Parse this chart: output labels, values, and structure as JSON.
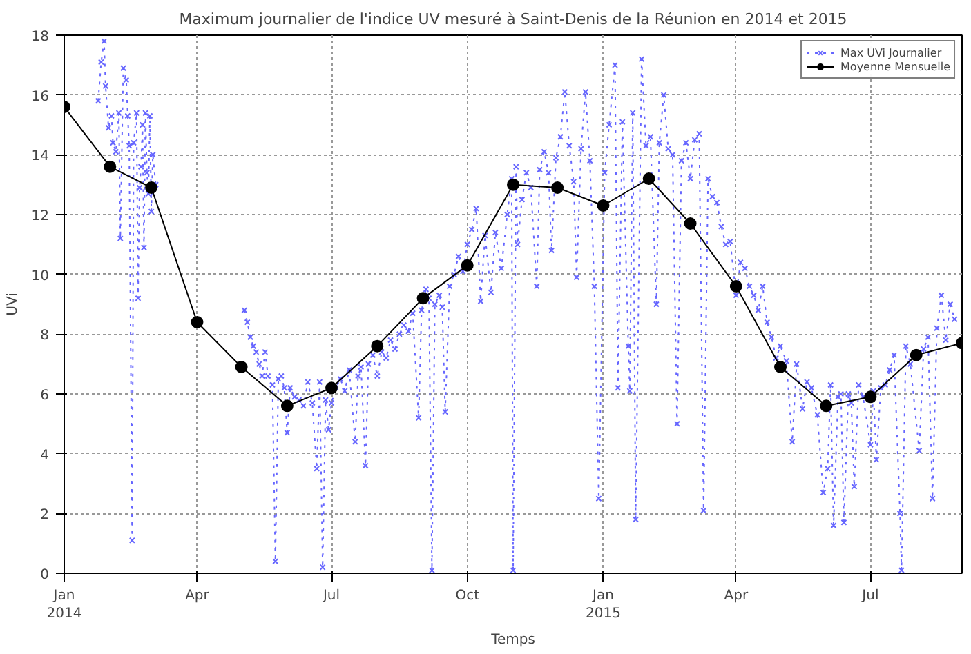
{
  "chart_data": {
    "type": "line",
    "title": "Maximum journalier de l'indice UV mesuré à Saint-Denis de la Réunion en 2014 et 2015",
    "xlabel": "Temps",
    "ylabel": "UVi",
    "xlim": [
      "2014-01-01",
      "2015-09-01"
    ],
    "xticks": [
      {
        "value": "2014-01-01",
        "label": "Jan\n2014"
      },
      {
        "value": "2014-04-01",
        "label": "Apr"
      },
      {
        "value": "2014-07-01",
        "label": "Jul"
      },
      {
        "value": "2014-10-01",
        "label": "Oct"
      },
      {
        "value": "2015-01-01",
        "label": "Jan\n2015"
      },
      {
        "value": "2015-04-01",
        "label": "Apr"
      },
      {
        "value": "2015-07-01",
        "label": "Jul"
      }
    ],
    "ylim": [
      0,
      18
    ],
    "yticks": [
      0,
      2,
      4,
      6,
      8,
      10,
      12,
      14,
      16,
      18
    ],
    "grid": true,
    "legend": "top right",
    "series": [
      {
        "name": "Max UVi Journalier",
        "color": "#6666ff",
        "marker": "cross",
        "line_style": "dotted",
        "x": [
          "2014-01-24",
          "2014-01-26",
          "2014-01-28",
          "2014-01-29",
          "2014-01-31",
          "2014-02-02",
          "2014-02-03",
          "2014-02-05",
          "2014-02-07",
          "2014-02-08",
          "2014-02-10",
          "2014-02-12",
          "2014-02-13",
          "2014-02-14",
          "2014-02-16",
          "2014-02-17",
          "2014-02-19",
          "2014-02-20",
          "2014-02-21",
          "2014-02-22",
          "2014-02-23",
          "2014-02-24",
          "2014-02-25",
          "2014-02-26",
          "2014-02-27",
          "2014-02-28",
          "2014-03-01",
          "2014-03-02",
          "2014-03-04",
          "2014-04-15",
          "2014-05-03",
          "2014-05-05",
          "2014-05-07",
          "2014-05-09",
          "2014-05-11",
          "2014-05-13",
          "2014-05-15",
          "2014-05-17",
          "2014-05-19",
          "2014-05-22",
          "2014-05-24",
          "2014-05-26",
          "2014-05-28",
          "2014-05-30",
          "2014-06-01",
          "2014-06-03",
          "2014-06-06",
          "2014-06-09",
          "2014-06-12",
          "2014-06-15",
          "2014-06-18",
          "2014-06-21",
          "2014-06-23",
          "2014-06-25",
          "2014-06-27",
          "2014-06-29",
          "2014-07-01",
          "2014-07-04",
          "2014-07-07",
          "2014-07-10",
          "2014-07-13",
          "2014-07-17",
          "2014-07-19",
          "2014-07-21",
          "2014-07-24",
          "2014-07-26",
          "2014-07-29",
          "2014-08-01",
          "2014-08-04",
          "2014-08-07",
          "2014-08-10",
          "2014-08-13",
          "2014-08-16",
          "2014-08-19",
          "2014-08-22",
          "2014-08-25",
          "2014-08-29",
          "2014-08-31",
          "2014-09-03",
          "2014-09-05",
          "2014-09-07",
          "2014-09-09",
          "2014-09-12",
          "2014-09-14",
          "2014-09-16",
          "2014-09-19",
          "2014-09-22",
          "2014-09-25",
          "2014-09-28",
          "2014-10-01",
          "2014-10-04",
          "2014-10-07",
          "2014-10-10",
          "2014-10-13",
          "2014-10-17",
          "2014-10-20",
          "2014-10-24",
          "2014-10-28",
          "2014-10-31",
          "2014-11-01",
          "2014-11-03",
          "2014-11-04",
          "2014-11-07",
          "2014-11-10",
          "2014-11-13",
          "2014-11-17",
          "2014-11-19",
          "2014-11-22",
          "2014-11-25",
          "2014-11-27",
          "2014-11-30",
          "2014-12-03",
          "2014-12-06",
          "2014-12-09",
          "2014-12-12",
          "2014-12-14",
          "2014-12-17",
          "2014-12-20",
          "2014-12-23",
          "2014-12-26",
          "2014-12-29",
          "2015-01-02",
          "2015-01-05",
          "2015-01-09",
          "2015-01-11",
          "2015-01-14",
          "2015-01-18",
          "2015-01-19",
          "2015-01-21",
          "2015-01-23",
          "2015-01-27",
          "2015-01-30",
          "2015-02-02",
          "2015-02-06",
          "2015-02-08",
          "2015-02-11",
          "2015-02-14",
          "2015-02-17",
          "2015-02-20",
          "2015-02-23",
          "2015-02-26",
          "2015-03-01",
          "2015-03-04",
          "2015-03-07",
          "2015-03-10",
          "2015-03-13",
          "2015-03-16",
          "2015-03-19",
          "2015-03-22",
          "2015-03-25",
          "2015-03-28",
          "2015-04-01",
          "2015-04-04",
          "2015-04-07",
          "2015-04-10",
          "2015-04-13",
          "2015-04-16",
          "2015-04-19",
          "2015-04-22",
          "2015-04-25",
          "2015-04-28",
          "2015-05-01",
          "2015-05-05",
          "2015-05-09",
          "2015-05-12",
          "2015-05-16",
          "2015-05-19",
          "2015-05-22",
          "2015-05-26",
          "2015-05-30",
          "2015-06-02",
          "2015-06-04",
          "2015-06-06",
          "2015-06-09",
          "2015-06-11",
          "2015-06-13",
          "2015-06-16",
          "2015-06-18",
          "2015-06-20",
          "2015-06-23",
          "2015-06-26",
          "2015-07-01",
          "2015-07-03",
          "2015-07-05",
          "2015-07-08",
          "2015-07-11",
          "2015-07-14",
          "2015-07-17",
          "2015-07-21",
          "2015-07-22",
          "2015-07-25",
          "2015-07-28",
          "2015-08-03",
          "2015-08-06",
          "2015-08-09",
          "2015-08-12",
          "2015-08-15",
          "2015-08-18",
          "2015-08-21",
          "2015-08-24",
          "2015-08-27"
        ],
        "values": [
          15.8,
          17.1,
          17.8,
          16.3,
          14.9,
          15.3,
          14.4,
          14.1,
          15.4,
          11.2,
          16.9,
          16.5,
          15.3,
          14.3,
          1.1,
          14.4,
          15.4,
          9.2,
          12.9,
          13.6,
          15.0,
          10.9,
          15.4,
          13.4,
          12.7,
          15.3,
          12.1,
          14.0,
          13.0,
          null,
          8.8,
          8.4,
          7.9,
          7.6,
          7.4,
          7.0,
          6.6,
          7.4,
          6.6,
          6.3,
          0.4,
          6.5,
          6.6,
          6.2,
          4.7,
          6.2,
          5.9,
          5.8,
          5.6,
          6.4,
          5.7,
          3.5,
          6.4,
          0.2,
          5.8,
          4.8,
          5.7,
          6.2,
          6.5,
          6.1,
          6.8,
          4.4,
          6.6,
          6.9,
          3.6,
          7.0,
          7.3,
          6.6,
          7.4,
          7.2,
          7.8,
          7.5,
          8.0,
          8.3,
          8.1,
          8.7,
          5.2,
          8.8,
          9.5,
          9.2,
          0.1,
          9.0,
          9.3,
          8.9,
          5.4,
          9.6,
          10.0,
          10.6,
          10.1,
          11.0,
          11.5,
          12.2,
          9.1,
          11.3,
          9.4,
          11.4,
          10.2,
          12.0,
          13.2,
          0.1,
          13.6,
          11.0,
          12.5,
          13.4,
          12.9,
          9.6,
          13.5,
          14.1,
          13.4,
          10.8,
          13.9,
          14.6,
          16.1,
          14.3,
          13.1,
          9.9,
          14.2,
          16.1,
          13.8,
          9.6,
          2.5,
          13.4,
          15.0,
          17.0,
          6.2,
          15.1,
          7.6,
          6.1,
          15.4,
          1.8,
          17.2,
          14.3,
          14.6,
          9.0,
          14.4,
          16.0,
          14.2,
          14.0,
          5.0,
          13.8,
          14.4,
          13.2,
          14.5,
          14.7,
          2.1,
          13.2,
          12.6,
          12.4,
          11.6,
          11.0,
          11.1,
          9.3,
          10.4,
          10.2,
          9.6,
          9.3,
          8.8,
          9.6,
          8.4,
          7.9,
          7.2,
          7.6,
          7.1,
          4.4,
          7.0,
          5.5,
          6.4,
          6.2,
          5.3,
          2.7,
          3.5,
          6.3,
          1.6,
          5.9,
          6.0,
          1.7,
          6.0,
          5.7,
          2.9,
          6.3,
          5.9,
          4.3,
          6.1,
          3.8,
          6.2,
          6.3,
          6.8,
          7.3,
          2.0,
          0.1,
          7.6,
          7.0,
          4.1,
          7.5,
          7.9,
          2.5,
          8.2,
          9.3,
          7.8,
          9.0,
          8.5
        ]
      },
      {
        "name": "Moyenne Mensuelle",
        "color": "#000000",
        "marker": "circle",
        "line_style": "solid",
        "x": [
          "2014-01-01",
          "2014-02-01",
          "2014-03-01",
          "2014-04-01",
          "2014-05-01",
          "2014-06-01",
          "2014-07-01",
          "2014-08-01",
          "2014-09-01",
          "2014-10-01",
          "2014-11-01",
          "2014-12-01",
          "2015-01-01",
          "2015-02-01",
          "2015-03-01",
          "2015-04-01",
          "2015-05-01",
          "2015-06-01",
          "2015-07-01",
          "2015-08-01",
          "2015-09-01"
        ],
        "values": [
          15.6,
          13.6,
          12.9,
          8.4,
          6.9,
          5.6,
          6.2,
          7.6,
          9.2,
          10.3,
          13.0,
          12.9,
          12.3,
          13.2,
          11.7,
          9.6,
          6.9,
          5.6,
          5.9,
          7.3,
          7.7
        ]
      }
    ]
  }
}
